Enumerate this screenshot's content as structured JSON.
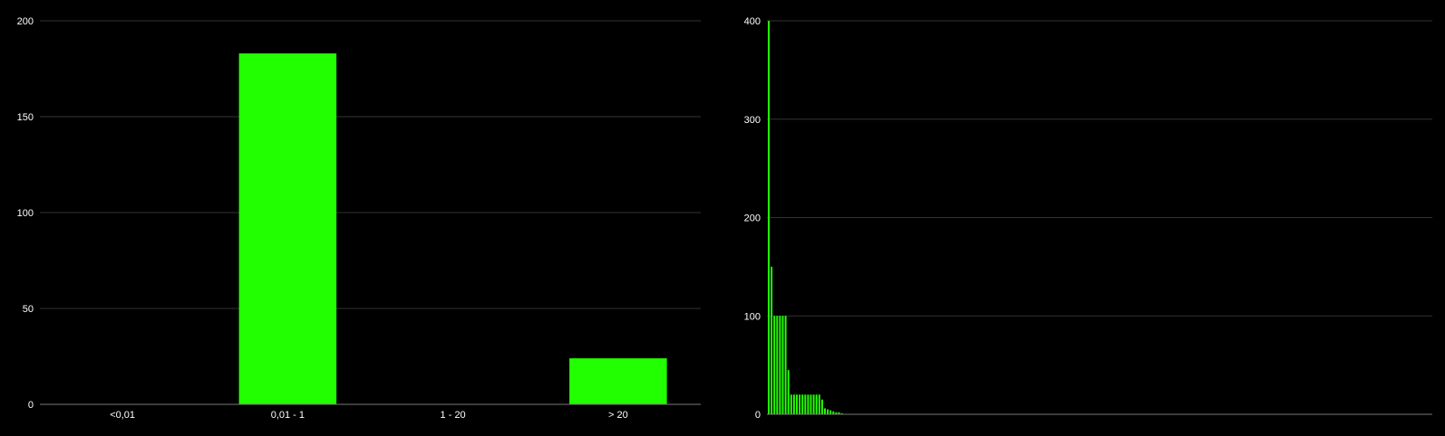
{
  "colors": {
    "background": "#000000",
    "bar": "#22ff00",
    "grid": "#333333",
    "axis": "#777777",
    "text": "#ffffff"
  },
  "chart_data": [
    {
      "type": "bar",
      "categories": [
        "<0,01",
        "0,01 - 1",
        "1 - 20",
        "> 20"
      ],
      "values": [
        0,
        183,
        0,
        24
      ],
      "ylim": [
        0,
        200
      ],
      "yticks": [
        "0",
        "50",
        "100",
        "150",
        "200"
      ],
      "grid": true
    },
    {
      "type": "bar",
      "values": [
        400,
        150,
        100,
        100,
        100,
        100,
        100,
        45,
        20,
        20,
        20,
        20,
        20,
        20,
        20,
        20,
        20,
        20,
        20,
        15,
        6,
        5,
        4,
        3,
        2,
        2,
        1
      ],
      "ylim": [
        0,
        400
      ],
      "yticks": [
        "0",
        "100",
        "200",
        "300",
        "400"
      ],
      "grid": true
    }
  ]
}
